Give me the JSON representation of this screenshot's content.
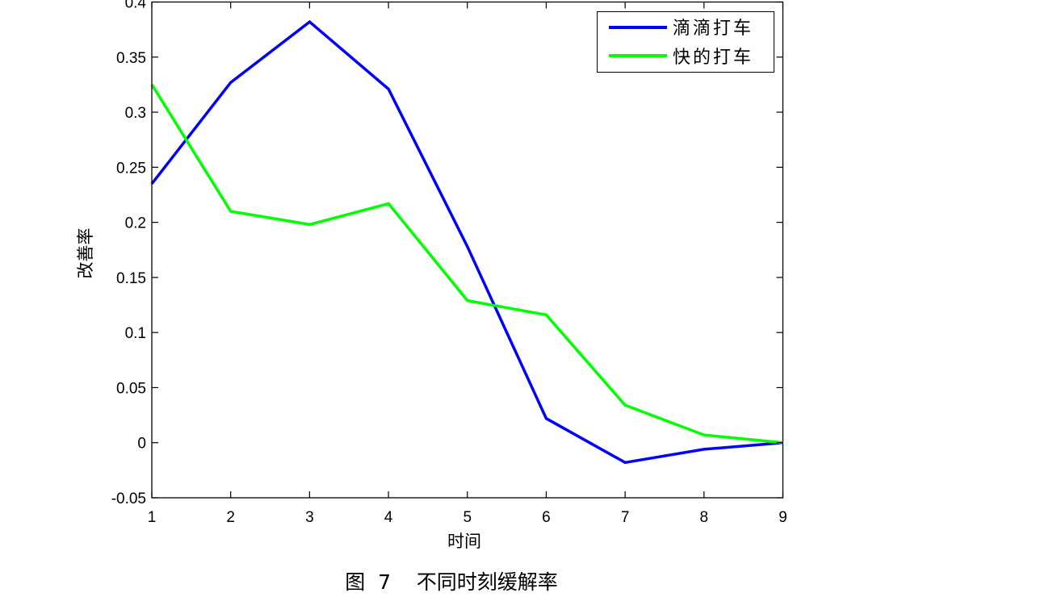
{
  "chart_data": {
    "type": "line",
    "title": "",
    "xlabel": "时间",
    "ylabel": "改善率",
    "x": [
      1,
      2,
      3,
      4,
      5,
      6,
      7,
      8,
      9
    ],
    "xlim": [
      1,
      9
    ],
    "ylim": [
      -0.05,
      0.4
    ],
    "xticks": [
      "1",
      "2",
      "3",
      "4",
      "5",
      "6",
      "7",
      "8",
      "9"
    ],
    "yticks": [
      "-0.05",
      "0",
      "0.05",
      "0.1",
      "0.15",
      "0.2",
      "0.25",
      "0.3",
      "0.35",
      "0.4"
    ],
    "grid": false,
    "legend_position": "upper right",
    "series": [
      {
        "name": "滴滴打车",
        "color": "#0000ff",
        "values": [
          0.235,
          0.327,
          0.382,
          0.321,
          0.178,
          0.022,
          -0.018,
          -0.006,
          0.0
        ]
      },
      {
        "name": "快的打车",
        "color": "#00ff00",
        "values": [
          0.325,
          0.21,
          0.198,
          0.217,
          0.129,
          0.116,
          0.034,
          0.007,
          0.0
        ]
      }
    ]
  },
  "caption": "图  7    不同时刻缓解率"
}
